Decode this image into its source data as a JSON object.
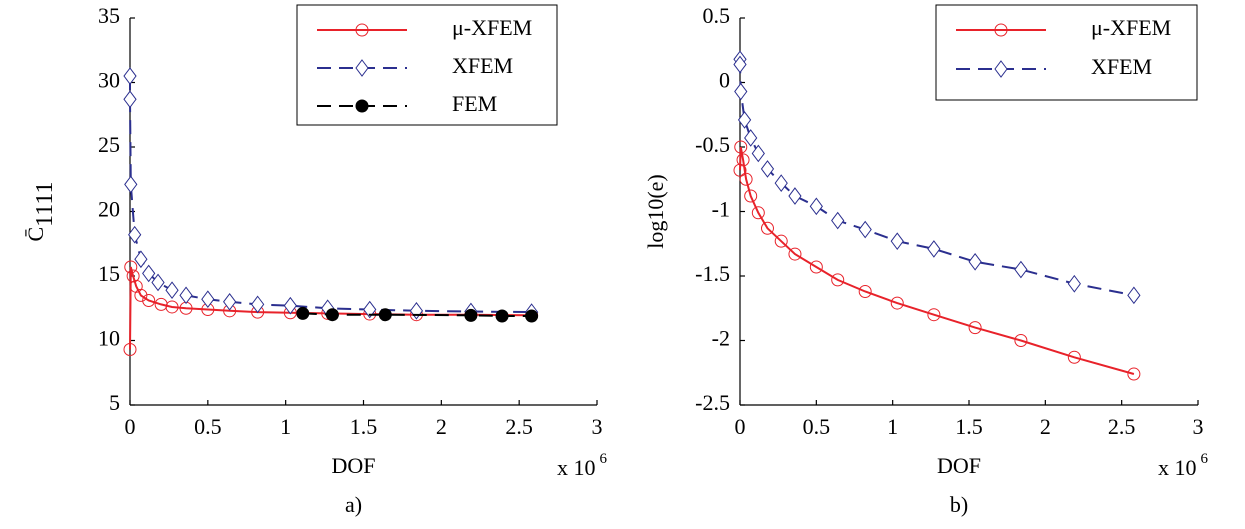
{
  "chart_data": [
    {
      "type": "line",
      "caption": "a)",
      "xlabel": "DOF",
      "xlabel_multiplier": "x 10",
      "xlabel_exponent": "6",
      "ylabel": "C̄",
      "ylabel_subscript": "1111",
      "xlim": [
        0,
        3
      ],
      "ylim": [
        5,
        35
      ],
      "xticks": [
        0,
        0.5,
        1,
        1.5,
        2,
        2.5,
        3
      ],
      "yticks": [
        5,
        10,
        15,
        20,
        25,
        30,
        35
      ],
      "legend": "upper right",
      "series": [
        {
          "name": "μ-XFEM",
          "color": "#e8222a",
          "marker": "circle",
          "linestyle": "solid",
          "x": [
            0,
            0.005,
            0.02,
            0.04,
            0.07,
            0.12,
            0.2,
            0.27,
            0.36,
            0.5,
            0.64,
            0.82,
            1.03,
            1.27,
            1.54,
            1.84,
            2.19,
            2.58
          ],
          "values": [
            9.3,
            15.7,
            15.0,
            14.2,
            13.5,
            13.1,
            12.8,
            12.6,
            12.5,
            12.4,
            12.3,
            12.2,
            12.15,
            12.1,
            12.05,
            12.0,
            12.0,
            11.95
          ]
        },
        {
          "name": "XFEM",
          "color": "#2b2f8f",
          "marker": "diamond",
          "linestyle": "dashed",
          "x": [
            0,
            0,
            0.005,
            0.03,
            0.07,
            0.12,
            0.18,
            0.27,
            0.36,
            0.5,
            0.64,
            0.82,
            1.03,
            1.27,
            1.54,
            1.84,
            2.19,
            2.58
          ],
          "values": [
            30.5,
            28.7,
            22.1,
            18.2,
            16.3,
            15.2,
            14.5,
            13.9,
            13.5,
            13.2,
            13.0,
            12.8,
            12.7,
            12.5,
            12.4,
            12.3,
            12.25,
            12.2
          ]
        },
        {
          "name": "FEM",
          "color": "#000000",
          "marker": "filled-circle",
          "linestyle": "dashed",
          "x": [
            1.11,
            1.3,
            1.64,
            2.19,
            2.39,
            2.58
          ],
          "values": [
            12.1,
            12.0,
            12.0,
            11.95,
            11.9,
            11.9
          ]
        }
      ]
    },
    {
      "type": "line",
      "caption": "b)",
      "xlabel": "DOF",
      "xlabel_multiplier": "x 10",
      "xlabel_exponent": "6",
      "ylabel": "log10(e)",
      "xlim": [
        0,
        3
      ],
      "ylim": [
        -2.5,
        0.5
      ],
      "xticks": [
        0,
        0.5,
        1,
        1.5,
        2,
        2.5,
        3
      ],
      "yticks": [
        -2.5,
        -2,
        -1.5,
        -1,
        -0.5,
        0,
        0.5
      ],
      "legend": "upper right",
      "series": [
        {
          "name": "μ-XFEM",
          "color": "#e8222a",
          "marker": "circle",
          "linestyle": "solid",
          "x": [
            0,
            0.005,
            0.02,
            0.04,
            0.07,
            0.12,
            0.18,
            0.27,
            0.36,
            0.5,
            0.64,
            0.82,
            1.03,
            1.27,
            1.54,
            1.84,
            2.19,
            2.58
          ],
          "values": [
            -0.68,
            -0.5,
            -0.6,
            -0.75,
            -0.88,
            -1.01,
            -1.13,
            -1.23,
            -1.33,
            -1.43,
            -1.53,
            -1.62,
            -1.71,
            -1.8,
            -1.9,
            -2.0,
            -2.13,
            -2.26
          ]
        },
        {
          "name": "XFEM",
          "color": "#2b2f8f",
          "marker": "diamond",
          "linestyle": "dashed",
          "x": [
            0,
            0,
            0.005,
            0.03,
            0.07,
            0.12,
            0.18,
            0.27,
            0.36,
            0.5,
            0.64,
            0.82,
            1.03,
            1.27,
            1.54,
            1.84,
            2.19,
            2.58
          ],
          "values": [
            0.18,
            0.14,
            -0.07,
            -0.29,
            -0.43,
            -0.55,
            -0.67,
            -0.78,
            -0.88,
            -0.96,
            -1.07,
            -1.14,
            -1.23,
            -1.29,
            -1.39,
            -1.45,
            -1.56,
            -1.65
          ]
        }
      ]
    }
  ]
}
